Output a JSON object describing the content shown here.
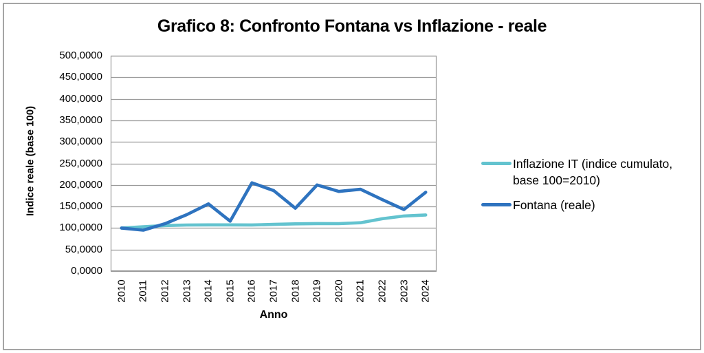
{
  "title": "Grafico 8: Confronto Fontana vs Inflazione - reale",
  "chart_data": {
    "type": "line",
    "title": "Grafico 8: Confronto Fontana vs Inflazione - reale",
    "xlabel": "Anno",
    "ylabel": "Indice reale (base 100)",
    "ylim": [
      0,
      500
    ],
    "y_tick_step": 50,
    "y_tick_labels": [
      "0,0000",
      "50,0000",
      "100,0000",
      "150,0000",
      "200,0000",
      "250,0000",
      "300,0000",
      "350,0000",
      "400,0000",
      "450,0000",
      "500,0000"
    ],
    "categories": [
      "2010",
      "2011",
      "2012",
      "2013",
      "2014",
      "2015",
      "2016",
      "2017",
      "2018",
      "2019",
      "2020",
      "2021",
      "2022",
      "2023",
      "2024"
    ],
    "grid": true,
    "grid_color": "#9a9a9a",
    "legend_position": "right",
    "series": [
      {
        "name": "Inflazione IT (indice cumulato, base 100=2010)",
        "color": "#63c3cf",
        "values": [
          100.0,
          102.8,
          105.8,
          107.1,
          107.3,
          107.3,
          107.2,
          108.5,
          109.8,
          110.4,
          110.2,
          112.3,
          121.5,
          128.0,
          130.4
        ]
      },
      {
        "name": "Fontana (reale)",
        "color": "#2e73bf",
        "values": [
          100,
          95,
          110,
          131,
          156,
          116,
          205,
          187,
          146,
          200,
          185,
          190,
          166,
          143,
          183
        ]
      }
    ]
  }
}
